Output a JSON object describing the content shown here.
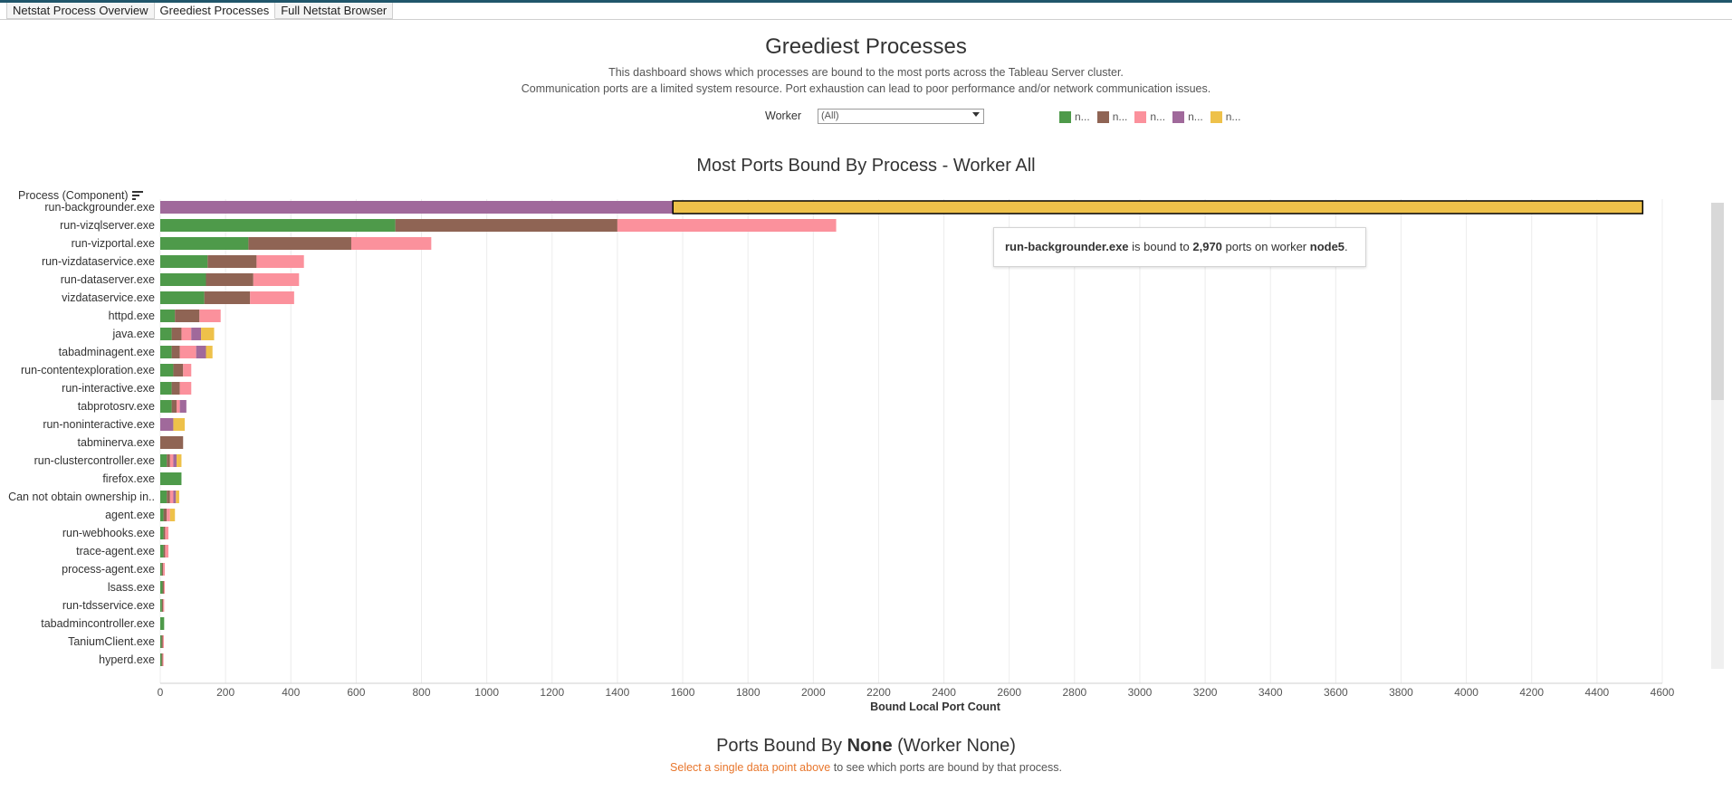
{
  "tabs": [
    {
      "label": "Netstat Process Overview",
      "active": false
    },
    {
      "label": "Greediest Processes",
      "active": true
    },
    {
      "label": "Full Netstat Browser",
      "active": false
    }
  ],
  "header": {
    "title": "Greediest Processes",
    "desc1": "This dashboard shows which processes are bound to the most ports across the Tableau Server cluster.",
    "desc2": "Communication ports are a limited system resource.  Port exhaustion can lead to poor performance and/or network communication issues."
  },
  "filter": {
    "label": "Worker",
    "value": "(All)"
  },
  "legend": [
    {
      "label": "n...",
      "color": "#4e9a4a"
    },
    {
      "label": "n...",
      "color": "#8f6454"
    },
    {
      "label": "n...",
      "color": "#fb919c"
    },
    {
      "label": "n...",
      "color": "#a0699b"
    },
    {
      "label": "n...",
      "color": "#eec14a"
    }
  ],
  "chart_title": "Most Ports Bound By Process - Worker All",
  "axis_header": "Process (Component)",
  "tooltip": {
    "process": "run-backgrounder.exe",
    "t1": " is bound to ",
    "count": "2,970",
    "t2": " ports on worker ",
    "worker": "node5",
    "t3": "."
  },
  "chart_data": {
    "type": "bar",
    "orientation": "horizontal",
    "stacked": true,
    "xlabel": "Bound Local Port Count",
    "xlim": [
      0,
      4600
    ],
    "xticks": [
      0,
      200,
      400,
      600,
      800,
      1000,
      1200,
      1400,
      1600,
      1800,
      2000,
      2200,
      2400,
      2600,
      2800,
      3000,
      3200,
      3400,
      3600,
      3800,
      4000,
      4200,
      4400,
      4600
    ],
    "colors": [
      "#4e9a4a",
      "#8f6454",
      "#fb919c",
      "#a0699b",
      "#eec14a"
    ],
    "categories": [
      "run-backgrounder.exe",
      "run-vizqlserver.exe",
      "run-vizportal.exe",
      "run-vizdataservice.exe",
      "run-dataserver.exe",
      "vizdataservice.exe",
      "httpd.exe",
      "java.exe",
      "tabadminagent.exe",
      "run-contentexploration.exe",
      "run-interactive.exe",
      "tabprotosrv.exe",
      "run-noninteractive.exe",
      "tabminerva.exe",
      "run-clustercontroller.exe",
      "firefox.exe",
      "Can not obtain ownership in..",
      "agent.exe",
      "run-webhooks.exe",
      "trace-agent.exe",
      "process-agent.exe",
      "lsass.exe",
      "run-tdsservice.exe",
      "tabadmincontroller.exe",
      "TaniumClient.exe",
      "hyperd.exe"
    ],
    "values": [
      [
        0,
        0,
        0,
        1570,
        2970
      ],
      [
        720,
        680,
        670,
        0,
        0
      ],
      [
        270,
        315,
        245,
        0,
        0
      ],
      [
        145,
        150,
        145,
        0,
        0
      ],
      [
        140,
        145,
        140,
        0,
        0
      ],
      [
        135,
        140,
        135,
        0,
        0
      ],
      [
        45,
        75,
        65,
        0,
        0
      ],
      [
        35,
        30,
        30,
        30,
        40
      ],
      [
        35,
        25,
        50,
        30,
        20
      ],
      [
        40,
        30,
        25,
        0,
        0
      ],
      [
        35,
        25,
        35,
        0,
        0
      ],
      [
        35,
        15,
        10,
        20,
        0
      ],
      [
        0,
        0,
        0,
        40,
        35
      ],
      [
        0,
        70,
        0,
        0,
        0
      ],
      [
        20,
        10,
        10,
        10,
        15
      ],
      [
        65,
        0,
        0,
        0,
        0
      ],
      [
        20,
        10,
        10,
        8,
        10
      ],
      [
        10,
        10,
        10,
        0,
        15
      ],
      [
        10,
        5,
        10,
        0,
        0
      ],
      [
        10,
        5,
        10,
        0,
        0
      ],
      [
        5,
        4,
        5,
        0,
        0
      ],
      [
        7,
        4,
        3,
        0,
        0
      ],
      [
        5,
        4,
        3,
        0,
        0
      ],
      [
        12,
        0,
        0,
        0,
        0
      ],
      [
        4,
        4,
        3,
        0,
        0
      ],
      [
        4,
        3,
        3,
        0,
        0
      ]
    ],
    "highlight": {
      "category": "run-backgrounder.exe",
      "segment": 4
    },
    "grid": true
  },
  "bottom": {
    "prefix": "Ports Bound By ",
    "bold": "None",
    "suffix": " (Worker None)",
    "hint": "Select a single data point above",
    "note": " to see which ports are bound by that process."
  }
}
